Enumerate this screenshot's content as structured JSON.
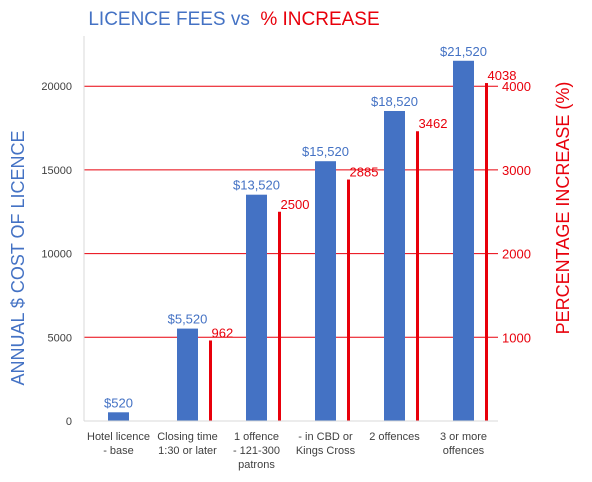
{
  "chart_data": {
    "type": "bar",
    "title_part1": "LICENCE FEES vs",
    "title_part2": "% INCREASE",
    "categories": [
      [
        "Hotel licence",
        "- base"
      ],
      [
        "Closing time",
        "1:30 or later"
      ],
      [
        "1 offence",
        "- 121-300",
        "patrons"
      ],
      [
        "- in CBD or",
        "Kings Cross"
      ],
      [
        "2 offences"
      ],
      [
        "3 or more",
        "offences"
      ]
    ],
    "series": [
      {
        "axis": "left",
        "color": "#4472c4",
        "values": [
          520,
          5520,
          13520,
          15520,
          18520,
          21520
        ],
        "labels": [
          "$520",
          "$5,520",
          "$13,520",
          "$15,520",
          "$18,520",
          "$21,520"
        ]
      },
      {
        "axis": "right",
        "color": "#e8000b",
        "values": [
          null,
          962,
          2500,
          2885,
          3462,
          4038
        ],
        "labels": [
          "",
          "962",
          "2500",
          "2885",
          "3462",
          "4038"
        ]
      }
    ],
    "ylabel_left": "ANNUAL $ COST OF LICENCE",
    "ylabel_right": "PERCENTAGE INCREASE (%)",
    "yticks_left": [
      "0",
      "5000",
      "10000",
      "15000",
      "20000"
    ],
    "yticks_right": [
      "1000",
      "2000",
      "3000",
      "4000"
    ],
    "ylim_left": [
      0,
      23000
    ],
    "ylim_right": [
      0,
      4600
    ],
    "gridlines_right": [
      1000,
      2000,
      3000,
      4000
    ],
    "grid_color": "#e8000b",
    "legend": "none"
  }
}
